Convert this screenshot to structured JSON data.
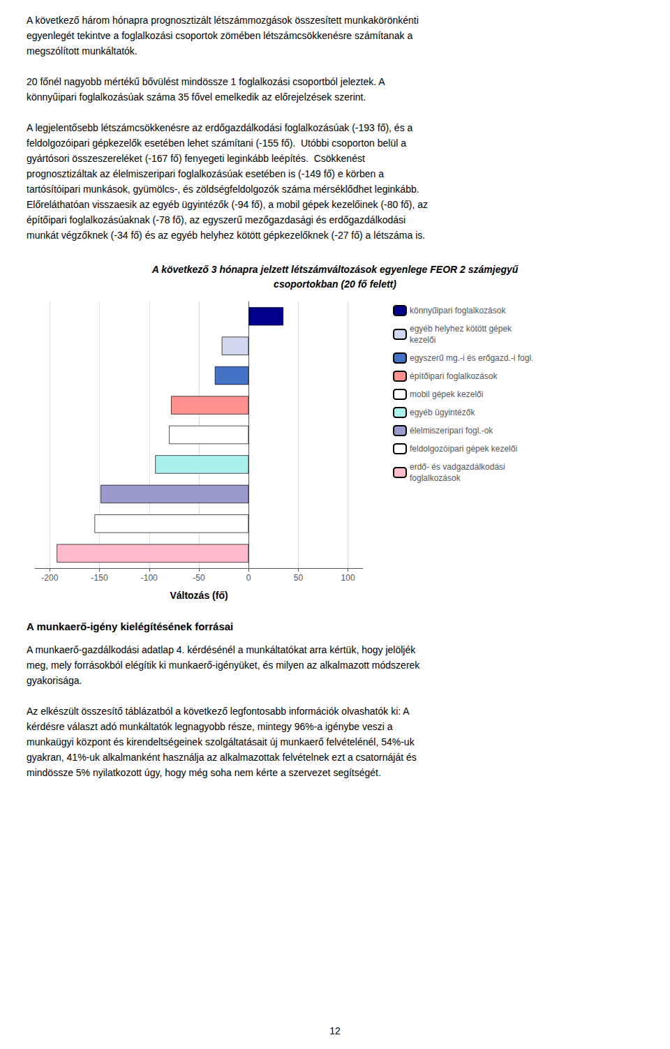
{
  "paragraphs_before": [
    [
      "A következő három hónapra prognosztizált létszámmozgások összesített munkakörönkénti",
      "egyenlegét tekintve a foglalkozási csoportok zömében létszámcsökkenésre számítanak a",
      "megszólított munkáltatók."
    ],
    [
      "20 főnél nagyobb mértékű bővülést mindössze 1 foglalkozási csoportból jeleztek. A",
      "könnyűipari foglalkozásúak száma 35 fővel emelkedik az előrejelzések szerint."
    ],
    [
      "A legjelentősebb létszámcsökkenésre az erdőgazdálkodási foglalkozásúak (-193 fő), és a",
      "feldolgozóipari gépkezelők esetében lehet számítani (-155 fő).  Utóbbi csoporton belül a",
      "gyártósori összeszereléket (-167 fő) fenyegeti leginkább leépítés.  Csökkenést",
      "prognosztizáltak az élelmiszeripari foglalkozásúak esetében is (-149 fő) e körben a",
      "tartósítóipari munkások, gyümölcs-, és zöldségfeldolgozók száma mérséklődhet leginkább.",
      "Előreláthatóan visszaesik az egyéb ügyintézők (-94 fő), a mobil gépek kezelőinek (-80 fő), az",
      "építőipari foglalkozásúaknak (-78 fő), az egyszerű mezőgazdasági és erdőgazdálkodási",
      "munkát végzőknek (-34 fő) és az egyéb helyhez kötött gépkezelőknek (-27 fő) a létszáma is."
    ]
  ],
  "chart_data": {
    "type": "bar",
    "orientation": "horizontal",
    "title": "A következő 3 hónapra jelzett létszámváltozások egyenlege FEOR 2 számjegyű\ncsoportokban (20 fő felett)",
    "xlabel": "Változás (fő)",
    "categories": [
      "könnyűipari foglalkozások",
      "egyéb helyhez kötött gépek\nkezelői",
      "egyszerű mg.-i és erőgazd.-i fogl.",
      "építőipari foglalkozások",
      "mobil gépek kezelői",
      "egyéb ügyintézők",
      "élelmiszeripari fogl.-ok",
      "feldolgozóipari gépek kezelői",
      "erdő- és vadgazdálkodási\nfoglalkozások"
    ],
    "values": [
      35,
      -27,
      -34,
      -78,
      -80,
      -94,
      -149,
      -155,
      -193
    ],
    "colors": [
      "#00008B",
      "#d0d8f0",
      "#4472C4",
      "#FF9090",
      "#ffffff",
      "#aaf0ee",
      "#9999cc",
      "#ffffff",
      "#ffbbcc"
    ],
    "xlim": [
      -215,
      115
    ],
    "xticks": [
      -200,
      -150,
      -100,
      -50,
      0,
      50,
      100
    ],
    "grid": true,
    "legend": "right",
    "tick_labels": "x"
  },
  "section_header": "A munkaerő-igény kielégítésének forrásai",
  "paragraphs_after": [
    [
      "A munkaerő-gazdálkodási adatlap 4. kérdésénél a munkáltatókat arra kértük, hogy jelöljék",
      "meg, mely forrásokból elégítik ki munkaerő-igényüket, és milyen az alkalmazott módszerek",
      "gyakorisága."
    ],
    [
      "Az elkészült összesítő táblázatból a következő legfontosabb információk olvashatók ki: A",
      "kérdésre választ adó munkáltatók legnagyobb része, mintegy 96%-a igénybe veszi a",
      "munkaügyi központ és kirendeltségeinek szolgáltatásait új munkaerő felvételénél, 54%-uk",
      "gyakran, 41%-uk alkalmanként használja az alkalmazottak felvételnek ezt a csatornáját és",
      "mindössze 5% nyilatkozott úgy, hogy még soha nem kérte a szervezet segítségét."
    ]
  ],
  "page_number": "12"
}
